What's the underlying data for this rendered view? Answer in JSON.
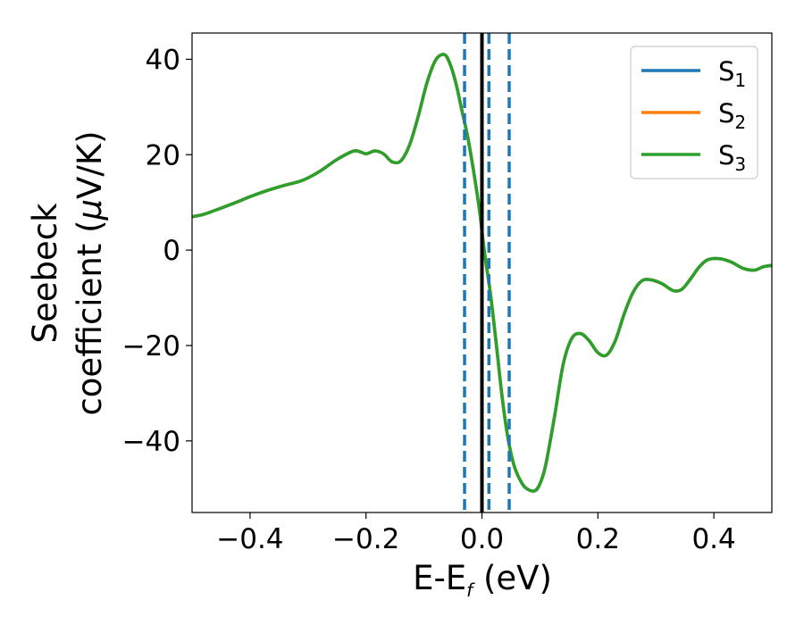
{
  "chart_data": {
    "type": "line",
    "title": "",
    "xlabel": "E-E",
    "xlabel_sub": "f",
    "xlabel_unit": " (eV)",
    "ylabel_line1": "Seebeck",
    "ylabel_line2_prefix": "coefficient  (",
    "ylabel_mu": "μ",
    "ylabel_line2_suffix": "V/K)",
    "xlim": [
      -0.5,
      0.5
    ],
    "ylim": [
      -55,
      45.5
    ],
    "xticks": [
      {
        "value": -0.4,
        "label": "−0.4"
      },
      {
        "value": -0.2,
        "label": "−0.2"
      },
      {
        "value": 0.0,
        "label": "0.0"
      },
      {
        "value": 0.2,
        "label": "0.2"
      },
      {
        "value": 0.4,
        "label": "0.4"
      }
    ],
    "yticks": [
      {
        "value": 40,
        "label": "40"
      },
      {
        "value": 20,
        "label": "20"
      },
      {
        "value": 0,
        "label": "0"
      },
      {
        "value": -20,
        "label": "−20"
      },
      {
        "value": -40,
        "label": "−40"
      }
    ],
    "grid": false,
    "legend_position": "top-right",
    "series": [
      {
        "name": "S",
        "sub": "1",
        "color": "#1f77b4"
      },
      {
        "name": "S",
        "sub": "2",
        "color": "#ff7f0e"
      },
      {
        "name": "S",
        "sub": "3",
        "color": "#2ca02c"
      }
    ],
    "x": [
      -0.5,
      -0.48,
      -0.45,
      -0.42,
      -0.4,
      -0.37,
      -0.34,
      -0.31,
      -0.28,
      -0.25,
      -0.22,
      -0.2,
      -0.185,
      -0.17,
      -0.155,
      -0.14,
      -0.125,
      -0.11,
      -0.095,
      -0.08,
      -0.065,
      -0.055,
      -0.045,
      -0.035,
      -0.025,
      -0.015,
      -0.005,
      0.0,
      0.005,
      0.015,
      0.025,
      0.035,
      0.045,
      0.055,
      0.065,
      0.075,
      0.09,
      0.1,
      0.11,
      0.125,
      0.14,
      0.155,
      0.17,
      0.185,
      0.2,
      0.215,
      0.23,
      0.245,
      0.26,
      0.275,
      0.29,
      0.31,
      0.33,
      0.345,
      0.36,
      0.375,
      0.39,
      0.41,
      0.43,
      0.45,
      0.47,
      0.485,
      0.5
    ],
    "y": [
      7,
      7.5,
      8.8,
      10.2,
      11.2,
      12.5,
      13.6,
      14.6,
      16.5,
      19,
      20.8,
      20.2,
      20.8,
      20.2,
      18.5,
      18.7,
      22,
      28,
      35,
      39.8,
      41,
      39,
      35,
      29.5,
      24,
      17,
      9,
      4,
      -1,
      -9.5,
      -20,
      -31,
      -39.5,
      -45,
      -48,
      -49.8,
      -50.5,
      -49,
      -45,
      -35,
      -24,
      -18.5,
      -17.5,
      -19,
      -21.5,
      -22,
      -19,
      -13.5,
      -9,
      -6.5,
      -6.2,
      -7,
      -8.5,
      -8.2,
      -6,
      -3.5,
      -2,
      -1.8,
      -2.5,
      -3.8,
      -4.2,
      -3.5,
      -3.2
    ],
    "vlines": [
      {
        "x": -0.03,
        "style": "dashed",
        "color": "#1f77b4"
      },
      {
        "x": 0.0,
        "style": "solid",
        "color": "#000000"
      },
      {
        "x": 0.012,
        "style": "dashed",
        "color": "#1f77b4"
      },
      {
        "x": 0.047,
        "style": "dashed",
        "color": "#1f77b4"
      }
    ]
  }
}
